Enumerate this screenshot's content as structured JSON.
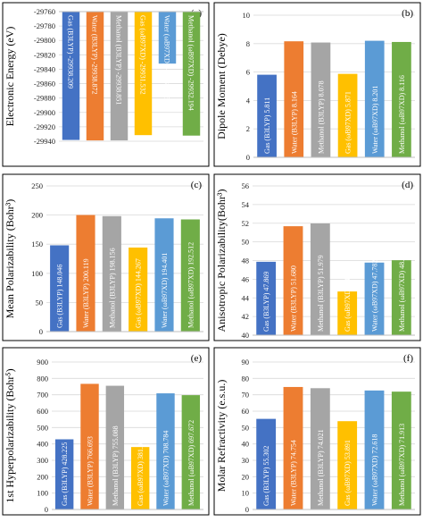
{
  "colors": {
    "Gas (B3LYP)": "#4472c4",
    "Water (B3LYP)": "#ed7d31",
    "Methanol (B3LYP)": "#a5a5a5",
    "Gas (ωB97XD)": "#ffc000",
    "Water (ωB97XD)": "#5b9bd5",
    "Methanol (ωB97XD)": "#70ad47"
  },
  "chart_data": [
    {
      "type": "bar",
      "panel": "(a)",
      "ylabel": "Electronic Energy (eV)",
      "ylim": [
        -29940,
        -29760
      ],
      "yticks": [
        -29760,
        -29780,
        -29800,
        -29820,
        -29840,
        -29860,
        -29880,
        -29900,
        -29920,
        -29940
      ],
      "tick_labels": [
        "-29760",
        "-29780",
        "-29800",
        "-29820",
        "-29840",
        "-29860",
        "-29880",
        "-29900",
        "-29920",
        "-29940"
      ],
      "categories": [
        "Gas (B3LYP)",
        "Water (B3LYP)",
        "Methanol (B3LYP)",
        "Gas (ωB97XD)",
        "Water (ωB97XD)",
        "Methanol (ωB97XD)"
      ],
      "values": [
        -29938.209,
        -29938.872,
        -29938.851,
        -29931.532,
        -29832.215,
        -29932.194
      ],
      "bar_labels": [
        "Gas (B3LYP)  -29938.209",
        "Water (B3LYP)  -29938.872",
        "Methanol (B3LYP)  -29938.851",
        "Gas (ωB97XD)  -29931.532",
        "Water (ωB97XD)  -29832.215",
        "Methanol (ωB97XD)  -29932.194"
      ],
      "grid": true
    },
    {
      "type": "bar",
      "panel": "(b)",
      "ylabel": "Dipole Moment (Debye)",
      "ylim": [
        0,
        10
      ],
      "yticks": [
        0,
        2,
        4,
        6,
        8,
        10
      ],
      "tick_labels": [
        "0",
        "2",
        "4",
        "6",
        "8",
        "10"
      ],
      "categories": [
        "Gas (B3LYP)",
        "Water (B3LYP)",
        "Methanol (B3LYP)",
        "Gas (ωB97XD)",
        "Water (ωB97XD)",
        "Methanol (ωB97XD)"
      ],
      "values": [
        5.811,
        8.164,
        8.078,
        5.871,
        8.201,
        8.116
      ],
      "bar_labels": [
        "Gas (B3LYP) 5.811",
        "Water (B3LYP) 8.164",
        "Methanol (B3LYP) 8.078",
        "Gas (ωB97XD) 5.871",
        "Water (ωB97XD) 8.201",
        "Methanol (ωB97XD) 8.116"
      ],
      "grid": true
    },
    {
      "type": "bar",
      "panel": "(c)",
      "ylabel": "Mean Polarizability (Bohr³)",
      "ylim": [
        0,
        250
      ],
      "yticks": [
        0,
        50,
        100,
        150,
        200,
        250
      ],
      "tick_labels": [
        "0",
        "50",
        "100",
        "150",
        "200",
        "250"
      ],
      "categories": [
        "Gas (B3LYP)",
        "Water (B3LYP)",
        "Methanol (B3LYP)",
        "Gas (ωB97XD)",
        "Water (ωB97XD)",
        "Methanol (ωB97XD)"
      ],
      "values": [
        148.046,
        200.119,
        198.156,
        144.267,
        194.401,
        192.512
      ],
      "bar_labels": [
        "Gas (B3LYP) 148.046",
        "Water (B3LYP) 200.119",
        "Methanol (B3LYP) 198.156",
        "Gas (ωB97XD) 144.267",
        "Water (ωB97XD) 194.401",
        "Methanol (ωB97XD) 192.512"
      ],
      "grid": true
    },
    {
      "type": "bar",
      "panel": "(d)",
      "ylabel": "Anisotropic Polarizability(Bohr³)",
      "ylim": [
        40,
        56
      ],
      "yticks": [
        40,
        42,
        44,
        46,
        48,
        50,
        52,
        54,
        56
      ],
      "tick_labels": [
        "40",
        "42",
        "44",
        "46",
        "48",
        "50",
        "52",
        "54",
        "56"
      ],
      "categories": [
        "Gas (B3LYP)",
        "Water (B3LYP)",
        "Methanol (B3LYP)",
        "Gas (ωB97XD)",
        "Water (ωB97XD)",
        "Methanol (ωB97XD)"
      ],
      "values": [
        47.869,
        51.68,
        51.979,
        44.686,
        47.782,
        48.035
      ],
      "bar_labels": [
        "Gas (B3LYP) 47.869",
        "Water (B3LYP) 51.680",
        "Methanol (B3LYP) 51.979",
        "Gas (ωB97XD) 44.686",
        "Water (ωB97XD) 47.782",
        "Methanol (ωB97XD) 48.035"
      ],
      "grid": true
    },
    {
      "type": "bar",
      "panel": "(e)",
      "ylabel": "1st Hyperpolarizability (Bohr⁵)",
      "ylim": [
        0,
        900
      ],
      "yticks": [
        0,
        100,
        200,
        300,
        400,
        500,
        600,
        700,
        800,
        900
      ],
      "tick_labels": [
        "0",
        "100",
        "200",
        "300",
        "400",
        "500",
        "600",
        "700",
        "800",
        "900"
      ],
      "categories": [
        "Gas (B3LYP)",
        "Water (B3LYP)",
        "Methanol (B3LYP)",
        "Gas (ωB97XD)",
        "Water (ωB97XD)",
        "Methanol (ωB97XD)"
      ],
      "values": [
        428.225,
        766.693,
        755.088,
        381.057,
        708.784,
        697.672
      ],
      "bar_labels": [
        "Gas (B3LYP) 428.225",
        "Water (B3LYP) 766.693",
        "Methanol (B3LYP) 755.088",
        "Gas (ωB97XD) 381.057",
        "Water (ωB97XD) 708.784",
        "Methanol (ωB97XD) 697.672"
      ],
      "grid": true
    },
    {
      "type": "bar",
      "panel": "(f)",
      "ylabel": "Molar Refractivity (e.s.u.)",
      "ylim": [
        0,
        90
      ],
      "yticks": [
        0,
        10,
        20,
        30,
        40,
        50,
        60,
        70,
        80,
        90
      ],
      "tick_labels": [
        "0",
        "10",
        "20",
        "30",
        "40",
        "50",
        "60",
        "70",
        "80",
        "90"
      ],
      "categories": [
        "Gas (B3LYP)",
        "Water (B3LYP)",
        "Methanol (B3LYP)",
        "Gas (ωB97XD)",
        "Water (ωB97XD)",
        "Methanol (ωB97XD)"
      ],
      "values": [
        55.302,
        74.754,
        74.021,
        53.891,
        72.618,
        71.913
      ],
      "bar_labels": [
        "Gas (B3LYP) 55.302",
        "Water (B3LYP) 74.754",
        "Methanol (B3LYP) 74.021",
        "Gas (ωB97XD) 53.891",
        "Water (ωB97XD) 72.618",
        "Methanol (ωB97XD) 71.913"
      ],
      "grid": true
    }
  ]
}
